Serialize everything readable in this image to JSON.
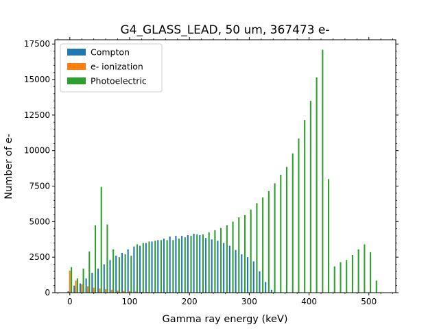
{
  "chart_data": {
    "type": "bar",
    "title": "G4_GLASS_LEAD, 50 um, 367473 e-",
    "xlabel": "Gamma ray energy (keV)",
    "ylabel": "Number of e-",
    "xlim": [
      -25,
      545
    ],
    "ylim": [
      0,
      17800
    ],
    "x_ticks": [
      0,
      100,
      200,
      300,
      400,
      500
    ],
    "y_ticks": [
      0,
      2500,
      5000,
      7500,
      10000,
      12500,
      15000,
      17500
    ],
    "x_tick_labels": [
      "0",
      "100",
      "200",
      "300",
      "400",
      "500"
    ],
    "y_tick_labels": [
      "0",
      "2500",
      "5000",
      "7500",
      "10000",
      "12500",
      "15000",
      "17500"
    ],
    "bin_width_keV": 10,
    "grid": false,
    "legend_position": "top-left",
    "series": [
      {
        "name": "Compton",
        "color": "#1f77b4",
        "x": [
          0,
          10,
          20,
          30,
          40,
          50,
          60,
          70,
          80,
          90,
          100,
          110,
          120,
          130,
          140,
          150,
          160,
          170,
          180,
          190,
          200,
          210,
          220,
          230,
          240,
          250,
          260,
          270,
          280,
          290,
          300,
          310,
          320,
          330,
          340
        ],
        "values": [
          100,
          500,
          650,
          1000,
          1400,
          1700,
          2000,
          2300,
          2600,
          2800,
          3050,
          3250,
          3300,
          3500,
          3600,
          3700,
          3800,
          3950,
          4000,
          4000,
          4050,
          4150,
          4050,
          3850,
          3750,
          3650,
          3500,
          3300,
          3000,
          2700,
          2500,
          2200,
          1500,
          750,
          200
        ]
      },
      {
        "name": "e- ionization",
        "color": "#ff7f0e",
        "x": [
          0,
          10,
          20,
          30,
          40,
          50,
          60,
          70,
          80,
          90,
          100,
          110,
          120,
          130,
          140,
          150,
          160
        ],
        "values": [
          1550,
          850,
          600,
          450,
          350,
          300,
          250,
          200,
          150,
          120,
          100,
          80,
          60,
          50,
          40,
          30,
          20
        ]
      },
      {
        "name": "Photoelectric",
        "color": "#2ca02c",
        "x": [
          0,
          10,
          20,
          30,
          40,
          50,
          60,
          70,
          80,
          90,
          100,
          110,
          120,
          130,
          140,
          150,
          160,
          170,
          180,
          190,
          200,
          210,
          220,
          230,
          240,
          250,
          260,
          270,
          280,
          290,
          300,
          310,
          320,
          330,
          340,
          350,
          360,
          370,
          380,
          390,
          400,
          410,
          420,
          430,
          440,
          450,
          460,
          470,
          480,
          490,
          500,
          510
        ],
        "values": [
          1800,
          1000,
          1700,
          2900,
          4750,
          7450,
          4800,
          3050,
          2500,
          2700,
          2600,
          3400,
          3500,
          3600,
          3650,
          3700,
          3700,
          3700,
          3800,
          3900,
          4000,
          4100,
          4100,
          4250,
          4400,
          4550,
          4750,
          5000,
          5300,
          5450,
          5850,
          6300,
          6700,
          7150,
          7700,
          8300,
          8850,
          9800,
          10850,
          12150,
          13500,
          15150,
          17100,
          8000,
          1850,
          2150,
          2300,
          2650,
          3050,
          3400,
          2850,
          850
        ]
      }
    ]
  }
}
